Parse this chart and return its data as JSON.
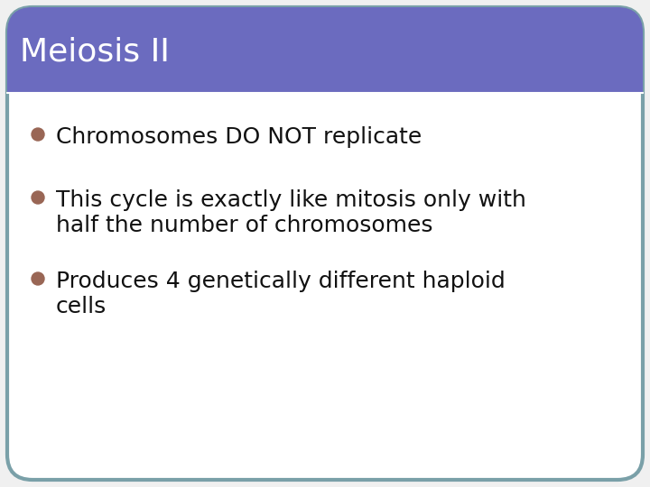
{
  "title": "Meiosis II",
  "title_color": "#ffffff",
  "title_bg_color": "#6b6bbf",
  "title_fontsize": 26,
  "title_font_weight": "normal",
  "slide_bg_color": "#ffffff",
  "border_color": "#7aa0a8",
  "bullet_color": "#996655",
  "bullet_points": [
    "Chromosomes DO NOT replicate",
    "This cycle is exactly like mitosis only with\nhalf the number of chromosomes",
    "Produces 4 genetically different haploid\ncells"
  ],
  "bullet_fontsize": 18,
  "text_color": "#111111",
  "fig_width": 7.2,
  "fig_height": 5.4,
  "dpi": 100
}
